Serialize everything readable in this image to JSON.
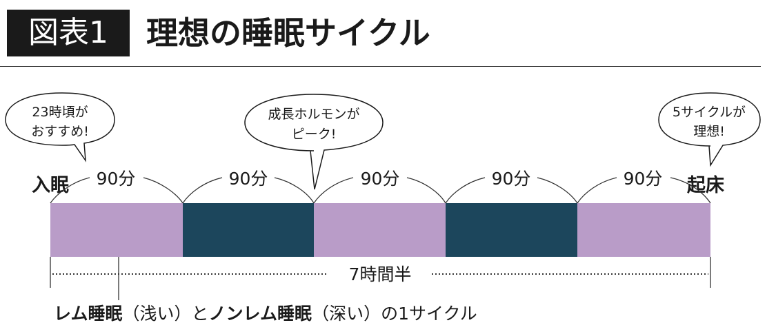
{
  "header": {
    "badge": "図表1",
    "title": "理想の睡眠サイクル"
  },
  "bubbles": [
    {
      "lines": [
        "23時頃が",
        "おすすめ!"
      ]
    },
    {
      "lines": [
        "成長ホルモンが",
        "ピーク!"
      ]
    },
    {
      "lines": [
        "5サイクルが",
        "理想!"
      ]
    }
  ],
  "endpoints": {
    "start": "入眠",
    "end": "起床"
  },
  "segments": [
    {
      "duration_label": "90分",
      "stage": "light",
      "color": "#b99cc8"
    },
    {
      "duration_label": "90分",
      "stage": "deep",
      "color": "#1c465c"
    },
    {
      "duration_label": "90分",
      "stage": "light",
      "color": "#b99cc8"
    },
    {
      "duration_label": "90分",
      "stage": "deep",
      "color": "#1c465c"
    },
    {
      "duration_label": "90分",
      "stage": "light",
      "color": "#b99cc8"
    }
  ],
  "total_label": "7時間半",
  "caption": {
    "rem": "レム睡眠",
    "rem_note": "（浅い）",
    "joiner": "と",
    "nonrem": "ノンレム睡眠",
    "nonrem_note": "（深い）",
    "suffix": "の1サイクル"
  }
}
